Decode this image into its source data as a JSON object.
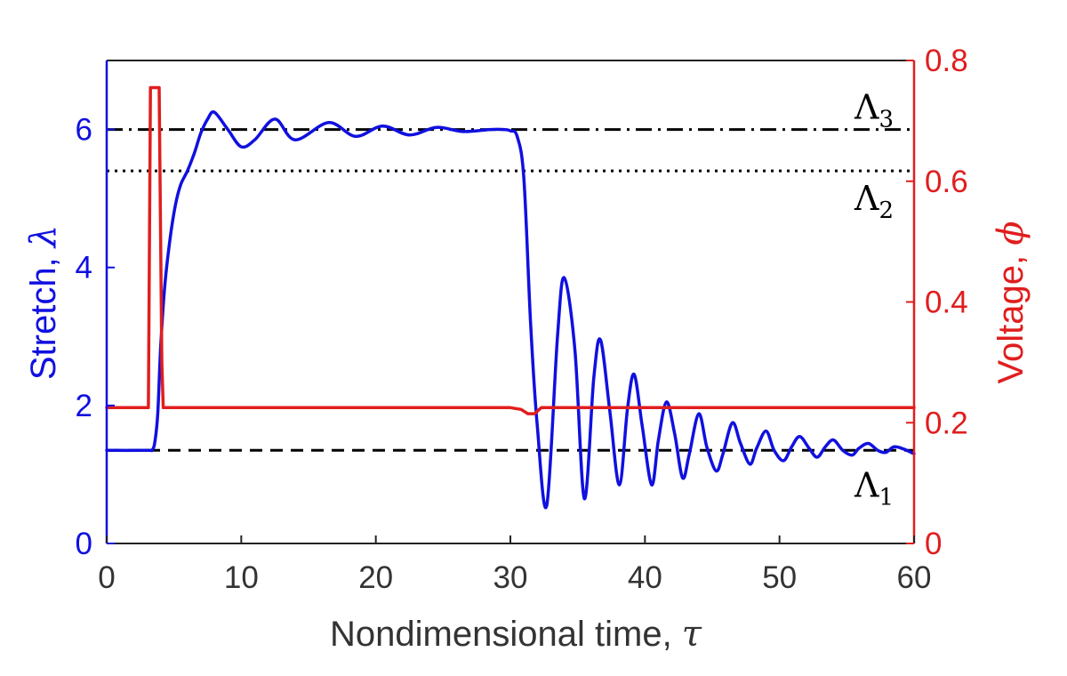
{
  "chart_data": {
    "type": "line",
    "xlabel": "Nondimensional time, ",
    "xlabel_symbol": "τ",
    "ylabel_left": "Stretch, ",
    "ylabel_left_symbol": "λ",
    "ylabel_right": "Voltage, ",
    "ylabel_right_symbol": "ϕ",
    "xlim": [
      0,
      60
    ],
    "ylim_left": [
      0,
      7
    ],
    "ylim_right": [
      0,
      0.8
    ],
    "grid": false,
    "colors": {
      "stretch": "#1010e0",
      "voltage": "#e01e1e",
      "reference": "#000000"
    },
    "x_ticks": [
      {
        "value": 0,
        "label": "0"
      },
      {
        "value": 10,
        "label": "10"
      },
      {
        "value": 20,
        "label": "20"
      },
      {
        "value": 30,
        "label": "30"
      },
      {
        "value": 40,
        "label": "40"
      },
      {
        "value": 50,
        "label": "50"
      },
      {
        "value": 60,
        "label": "60"
      }
    ],
    "y_left_ticks": [
      {
        "value": 0,
        "label": "0"
      },
      {
        "value": 2,
        "label": "2"
      },
      {
        "value": 4,
        "label": "4"
      },
      {
        "value": 6,
        "label": "6"
      }
    ],
    "y_right_ticks": [
      {
        "value": 0,
        "label": "0"
      },
      {
        "value": 0.2,
        "label": "0.2"
      },
      {
        "value": 0.4,
        "label": "0.4"
      },
      {
        "value": 0.6,
        "label": "0.6"
      },
      {
        "value": 0.8,
        "label": "0.8"
      }
    ],
    "reference_lines": [
      {
        "label": "Λ",
        "subscript": "3",
        "value": 6.0,
        "style": "dashdot"
      },
      {
        "label": "Λ",
        "subscript": "2",
        "value": 5.4,
        "style": "dotted"
      },
      {
        "label": "Λ",
        "subscript": "1",
        "value": 1.35,
        "style": "dashed"
      }
    ],
    "series": [
      {
        "key": "stretch",
        "axis": "left",
        "x": [
          0,
          3.0,
          3.4,
          3.6,
          3.8,
          4.0,
          4.3,
          4.7,
          5.1,
          5.5,
          6.0,
          6.5,
          7.0,
          7.5,
          8.0,
          9.0,
          10.0,
          11.0,
          12.5,
          14.0,
          16.5,
          18.5,
          20.5,
          22.5,
          24.5,
          26.5,
          28.5,
          29.5,
          30.0,
          30.5,
          31.0,
          31.5,
          32.0,
          32.7,
          33.5,
          34.0,
          34.8,
          35.5,
          36.2,
          36.7,
          37.4,
          38.1,
          38.7,
          39.2,
          39.8,
          40.5,
          41.0,
          41.6,
          42.2,
          42.8,
          43.3,
          44.0,
          44.6,
          45.3,
          45.8,
          46.5,
          47.1,
          47.8,
          48.3,
          49.0,
          49.6,
          50.3,
          50.9,
          51.5,
          52.2,
          52.8,
          53.4,
          54.0,
          54.7,
          55.4,
          55.9,
          56.6,
          57.3,
          57.9,
          58.5,
          59.2,
          60.0
        ],
        "y": [
          1.35,
          1.35,
          1.36,
          1.5,
          1.9,
          2.8,
          3.7,
          4.4,
          4.9,
          5.2,
          5.4,
          5.65,
          5.95,
          6.15,
          6.25,
          6.0,
          5.75,
          5.85,
          6.15,
          5.85,
          6.1,
          5.9,
          6.05,
          5.92,
          6.03,
          5.97,
          6.0,
          6.0,
          5.98,
          5.9,
          5.3,
          3.2,
          1.7,
          0.55,
          3.0,
          3.85,
          2.8,
          0.65,
          2.4,
          2.95,
          1.9,
          0.85,
          1.95,
          2.45,
          1.7,
          0.85,
          1.5,
          2.05,
          1.6,
          0.95,
          1.3,
          1.88,
          1.4,
          1.05,
          1.3,
          1.75,
          1.45,
          1.15,
          1.38,
          1.63,
          1.35,
          1.2,
          1.4,
          1.55,
          1.38,
          1.25,
          1.4,
          1.5,
          1.35,
          1.28,
          1.38,
          1.45,
          1.35,
          1.32,
          1.4,
          1.37,
          1.3
        ]
      },
      {
        "key": "voltage",
        "axis": "right",
        "x": [
          0,
          3.1,
          3.25,
          3.45,
          3.9,
          4.1,
          4.2,
          30.0,
          30.8,
          31.3,
          31.8,
          32.3,
          60.0
        ],
        "y": [
          0.225,
          0.225,
          0.755,
          0.755,
          0.755,
          0.3,
          0.225,
          0.225,
          0.222,
          0.215,
          0.215,
          0.225,
          0.225
        ]
      }
    ]
  }
}
